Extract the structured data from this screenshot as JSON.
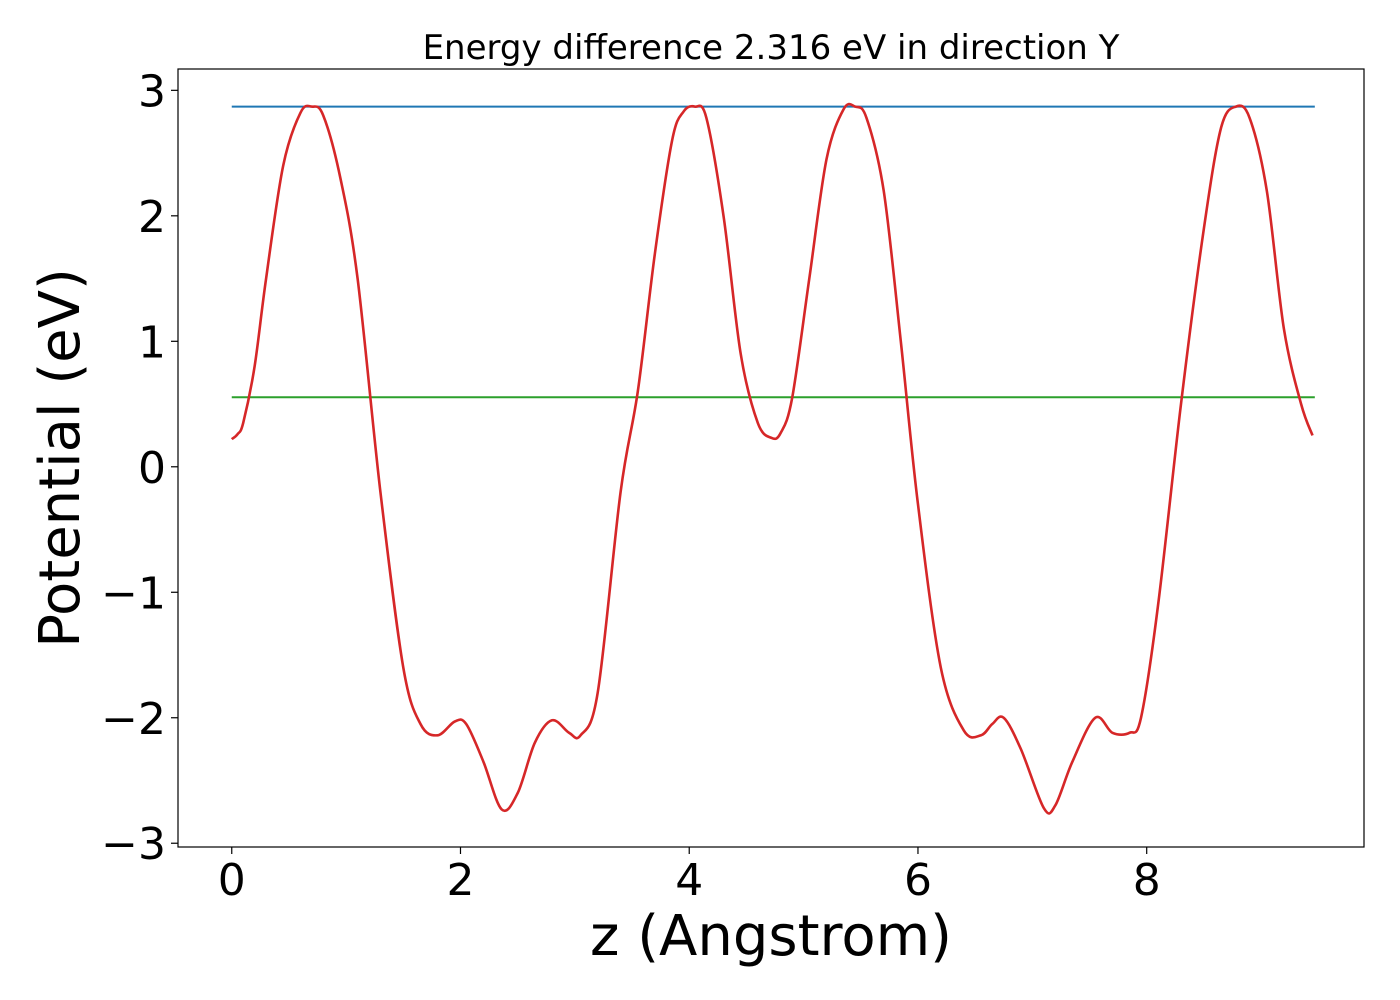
{
  "chart_data": {
    "type": "line",
    "title": "Energy difference 2.316 eV in direction Y",
    "xlabel": "z (Angstrom)",
    "ylabel": "Potential (eV)",
    "xlim": [
      -0.47,
      9.9
    ],
    "ylim": [
      -3.03,
      3.17
    ],
    "x_ticks": [
      0,
      2,
      4,
      6,
      8
    ],
    "y_ticks": [
      -3,
      -2,
      -1,
      0,
      1,
      2,
      3
    ],
    "x_tick_labels": [
      "0",
      "2",
      "4",
      "6",
      "8"
    ],
    "y_tick_labels": [
      "−3",
      "−2",
      "−1",
      "0",
      "1",
      "2",
      "3"
    ],
    "grid": false,
    "legend": "none",
    "series": [
      {
        "color": "#d62728",
        "x": [
          0.0,
          0.05,
          0.1,
          0.2,
          0.3,
          0.45,
          0.6,
          0.7,
          0.8,
          0.95,
          1.1,
          1.3,
          1.5,
          1.65,
          1.8,
          1.95,
          2.05,
          2.2,
          2.36,
          2.5,
          2.65,
          2.8,
          2.95,
          3.05,
          3.2,
          3.4,
          3.55,
          3.7,
          3.85,
          3.95,
          4.05,
          4.15,
          4.3,
          4.45,
          4.6,
          4.72,
          4.8,
          4.9,
          5.05,
          5.2,
          5.35,
          5.45,
          5.55,
          5.7,
          5.85,
          6.0,
          6.2,
          6.4,
          6.55,
          6.65,
          6.75,
          6.9,
          7.1,
          7.2,
          7.35,
          7.55,
          7.7,
          7.85,
          7.95,
          8.1,
          8.3,
          8.5,
          8.65,
          8.78,
          8.9,
          9.05,
          9.2,
          9.35,
          9.45
        ],
        "y": [
          0.22,
          0.26,
          0.35,
          0.8,
          1.5,
          2.4,
          2.82,
          2.87,
          2.8,
          2.3,
          1.5,
          -0.2,
          -1.6,
          -2.05,
          -2.14,
          -2.03,
          -2.05,
          -2.35,
          -2.73,
          -2.6,
          -2.2,
          -2.02,
          -2.12,
          -2.14,
          -1.8,
          -0.2,
          0.6,
          1.7,
          2.6,
          2.83,
          2.87,
          2.78,
          2.0,
          0.9,
          0.35,
          0.23,
          0.27,
          0.55,
          1.5,
          2.45,
          2.85,
          2.87,
          2.78,
          2.2,
          1.0,
          -0.3,
          -1.6,
          -2.1,
          -2.14,
          -2.05,
          -2.0,
          -2.25,
          -2.72,
          -2.7,
          -2.35,
          -2.0,
          -2.12,
          -2.12,
          -2.0,
          -1.1,
          0.5,
          1.9,
          2.7,
          2.87,
          2.78,
          2.2,
          1.1,
          0.5,
          0.25
        ]
      }
    ],
    "hlines": [
      {
        "y": 2.87,
        "x_range": [
          0.0,
          9.47
        ],
        "color": "#1f77b4"
      },
      {
        "y": 0.554,
        "x_range": [
          0.0,
          9.47
        ],
        "color": "#2ca02c"
      }
    ]
  }
}
